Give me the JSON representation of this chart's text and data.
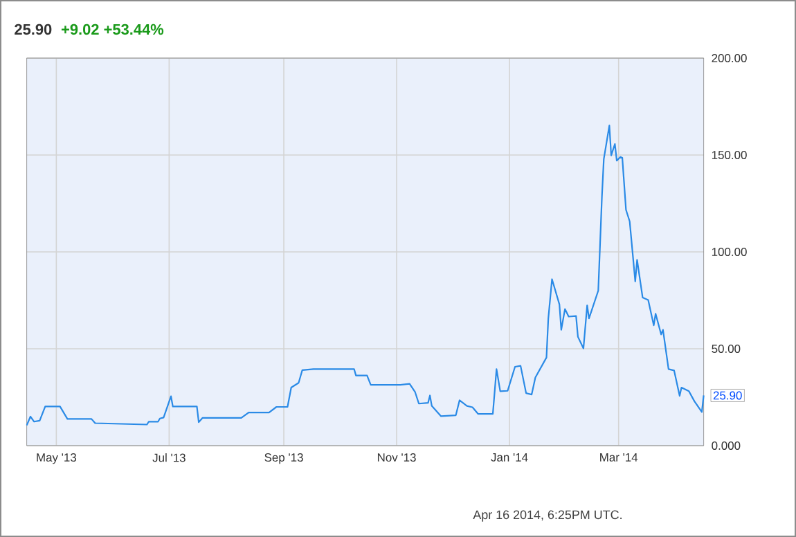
{
  "chart_data": {
    "type": "line",
    "title": "25.90",
    "subtitle": "+9.02  +53.44%",
    "x": [
      "2013-04-15",
      "2013-04-17",
      "2013-04-19",
      "2013-04-22",
      "2013-04-25",
      "2013-05-03",
      "2013-05-07",
      "2013-05-20",
      "2013-05-22",
      "2013-06-19",
      "2013-06-20",
      "2013-06-25",
      "2013-06-26",
      "2013-06-28",
      "2013-07-02",
      "2013-07-03",
      "2013-07-16",
      "2013-07-17",
      "2013-07-19",
      "2013-08-09",
      "2013-08-13",
      "2013-08-24",
      "2013-08-28",
      "2013-09-03",
      "2013-09-05",
      "2013-09-09",
      "2013-09-11",
      "2013-09-17",
      "2013-10-09",
      "2013-10-10",
      "2013-10-16",
      "2013-10-18",
      "2013-11-03",
      "2013-11-08",
      "2013-11-11",
      "2013-11-13",
      "2013-11-18",
      "2013-11-19",
      "2013-11-20",
      "2013-11-25",
      "2013-12-03",
      "2013-12-05",
      "2013-12-09",
      "2013-12-12",
      "2013-12-15",
      "2013-12-23",
      "2013-12-25",
      "2013-12-27",
      "2013-12-31",
      "2014-01-04",
      "2014-01-07",
      "2014-01-10",
      "2014-01-13",
      "2014-01-15",
      "2014-01-21",
      "2014-01-22",
      "2014-01-24",
      "2014-01-28",
      "2014-01-29",
      "2014-01-31",
      "2014-02-02",
      "2014-02-06",
      "2014-02-07",
      "2014-02-10",
      "2014-02-12",
      "2014-02-13",
      "2014-02-18",
      "2014-02-20",
      "2014-02-21",
      "2014-02-24",
      "2014-02-25",
      "2014-02-27",
      "2014-02-28",
      "2014-03-02",
      "2014-03-03",
      "2014-03-05",
      "2014-03-07",
      "2014-03-10",
      "2014-03-11",
      "2014-03-14",
      "2014-03-17",
      "2014-03-20",
      "2014-03-21",
      "2014-03-24",
      "2014-03-25",
      "2014-03-28",
      "2014-03-31",
      "2014-04-03",
      "2014-04-04",
      "2014-04-08",
      "2014-04-11",
      "2014-04-15",
      "2014-04-16"
    ],
    "series": [
      {
        "color": "#2a8ae6",
        "values": [
          10.5,
          15,
          12.4,
          12.9,
          20.2,
          20.2,
          13.8,
          13.8,
          11.6,
          10.9,
          12.4,
          12.4,
          14,
          14.5,
          25.5,
          20.2,
          20.2,
          12.1,
          14.3,
          14.3,
          17.1,
          17.1,
          20,
          20,
          30,
          32.4,
          39,
          39.5,
          39.5,
          36.2,
          36.2,
          31.4,
          31.4,
          31.9,
          27.6,
          21.7,
          22.1,
          25.9,
          20.5,
          15.2,
          15.7,
          23.4,
          20.5,
          19.8,
          16.4,
          16.4,
          39.5,
          28.1,
          28.3,
          40.7,
          41.2,
          27.1,
          26.4,
          35.2,
          45.5,
          65.7,
          85.9,
          72.9,
          59.8,
          70.5,
          66.6,
          66.9,
          56.2,
          50.2,
          72.4,
          65.7,
          80,
          128.8,
          147.9,
          165.2,
          149.8,
          155.7,
          147.1,
          149,
          148.6,
          121.7,
          115.7,
          84.8,
          95.9,
          76.4,
          75.2,
          62.1,
          68.1,
          57.4,
          59.8,
          39.5,
          38.8,
          25.7,
          30,
          28.1,
          22.9,
          17.4,
          25.9
        ]
      }
    ],
    "xlim": [
      "2013-04-15",
      "2014-04-16"
    ],
    "xticks": [
      {
        "value": "2013-05-01",
        "label": "May '13"
      },
      {
        "value": "2013-07-01",
        "label": "Jul '13"
      },
      {
        "value": "2013-09-01",
        "label": "Sep '13"
      },
      {
        "value": "2013-11-01",
        "label": "Nov '13"
      },
      {
        "value": "2014-01-01",
        "label": "Jan '14"
      },
      {
        "value": "2014-03-01",
        "label": "Mar '14"
      }
    ],
    "ylim": [
      0,
      200
    ],
    "yticks": [
      {
        "value": 0,
        "label": "0.000"
      },
      {
        "value": 50,
        "label": "50.00"
      },
      {
        "value": 100,
        "label": "100.00"
      },
      {
        "value": 150,
        "label": "150.00"
      },
      {
        "value": 200,
        "label": "200.00"
      }
    ],
    "grid": true,
    "annotations": [
      {
        "text": "25.90",
        "x": "2014-04-16",
        "y": 25.9
      },
      "Apr 16 2014, 6:25PM UTC."
    ]
  }
}
